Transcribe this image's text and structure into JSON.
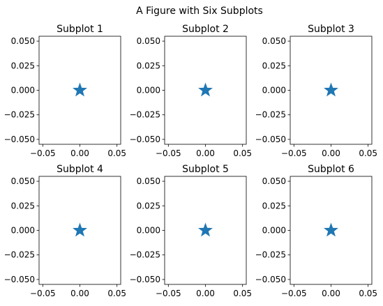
{
  "figure": {
    "title": "A Figure with Six Subplots"
  },
  "chart_data": [
    {
      "type": "scatter",
      "title": "Subplot 1",
      "marker": "star",
      "color": "#1f77b4",
      "points": [
        {
          "x": 0,
          "y": 0
        }
      ],
      "xlim": [
        -0.055,
        0.055
      ],
      "ylim": [
        -0.055,
        0.055
      ],
      "xticks": [
        -0.05,
        0.0,
        0.05
      ],
      "xtick_labels": [
        "−0.05",
        "0.00",
        "0.05"
      ],
      "yticks": [
        -0.05,
        -0.025,
        0.0,
        0.025,
        0.05
      ],
      "ytick_labels": [
        "−0.050",
        "−0.025",
        "0.000",
        "0.025",
        "0.050"
      ],
      "grid": false
    },
    {
      "type": "scatter",
      "title": "Subplot 2",
      "marker": "star",
      "color": "#1f77b4",
      "points": [
        {
          "x": 0,
          "y": 0
        }
      ],
      "xlim": [
        -0.055,
        0.055
      ],
      "ylim": [
        -0.055,
        0.055
      ],
      "xticks": [
        -0.05,
        0.0,
        0.05
      ],
      "xtick_labels": [
        "−0.05",
        "0.00",
        "0.05"
      ],
      "yticks": [
        -0.05,
        -0.025,
        0.0,
        0.025,
        0.05
      ],
      "ytick_labels": [
        "−0.050",
        "−0.025",
        "0.000",
        "0.025",
        "0.050"
      ],
      "grid": false
    },
    {
      "type": "scatter",
      "title": "Subplot 3",
      "marker": "star",
      "color": "#1f77b4",
      "points": [
        {
          "x": 0,
          "y": 0
        }
      ],
      "xlim": [
        -0.055,
        0.055
      ],
      "ylim": [
        -0.055,
        0.055
      ],
      "xticks": [
        -0.05,
        0.0,
        0.05
      ],
      "xtick_labels": [
        "−0.05",
        "0.00",
        "0.05"
      ],
      "yticks": [
        -0.05,
        -0.025,
        0.0,
        0.025,
        0.05
      ],
      "ytick_labels": [
        "−0.050",
        "−0.025",
        "0.000",
        "0.025",
        "0.050"
      ],
      "grid": false
    },
    {
      "type": "scatter",
      "title": "Subplot 4",
      "marker": "star",
      "color": "#1f77b4",
      "points": [
        {
          "x": 0,
          "y": 0
        }
      ],
      "xlim": [
        -0.055,
        0.055
      ],
      "ylim": [
        -0.055,
        0.055
      ],
      "xticks": [
        -0.05,
        0.0,
        0.05
      ],
      "xtick_labels": [
        "−0.05",
        "0.00",
        "0.05"
      ],
      "yticks": [
        -0.05,
        -0.025,
        0.0,
        0.025,
        0.05
      ],
      "ytick_labels": [
        "−0.050",
        "−0.025",
        "0.000",
        "0.025",
        "0.050"
      ],
      "grid": false
    },
    {
      "type": "scatter",
      "title": "Subplot 5",
      "marker": "star",
      "color": "#1f77b4",
      "points": [
        {
          "x": 0,
          "y": 0
        }
      ],
      "xlim": [
        -0.055,
        0.055
      ],
      "ylim": [
        -0.055,
        0.055
      ],
      "xticks": [
        -0.05,
        0.0,
        0.05
      ],
      "xtick_labels": [
        "−0.05",
        "0.00",
        "0.05"
      ],
      "yticks": [
        -0.05,
        -0.025,
        0.0,
        0.025,
        0.05
      ],
      "ytick_labels": [
        "−0.050",
        "−0.025",
        "0.000",
        "0.025",
        "0.050"
      ],
      "grid": false
    },
    {
      "type": "scatter",
      "title": "Subplot 6",
      "marker": "star",
      "color": "#1f77b4",
      "points": [
        {
          "x": 0,
          "y": 0
        }
      ],
      "xlim": [
        -0.055,
        0.055
      ],
      "ylim": [
        -0.055,
        0.055
      ],
      "xticks": [
        -0.05,
        0.0,
        0.05
      ],
      "xtick_labels": [
        "−0.05",
        "0.00",
        "0.05"
      ],
      "yticks": [
        -0.05,
        -0.025,
        0.0,
        0.025,
        0.05
      ],
      "ytick_labels": [
        "−0.050",
        "−0.025",
        "0.000",
        "0.025",
        "0.050"
      ],
      "grid": false
    }
  ]
}
